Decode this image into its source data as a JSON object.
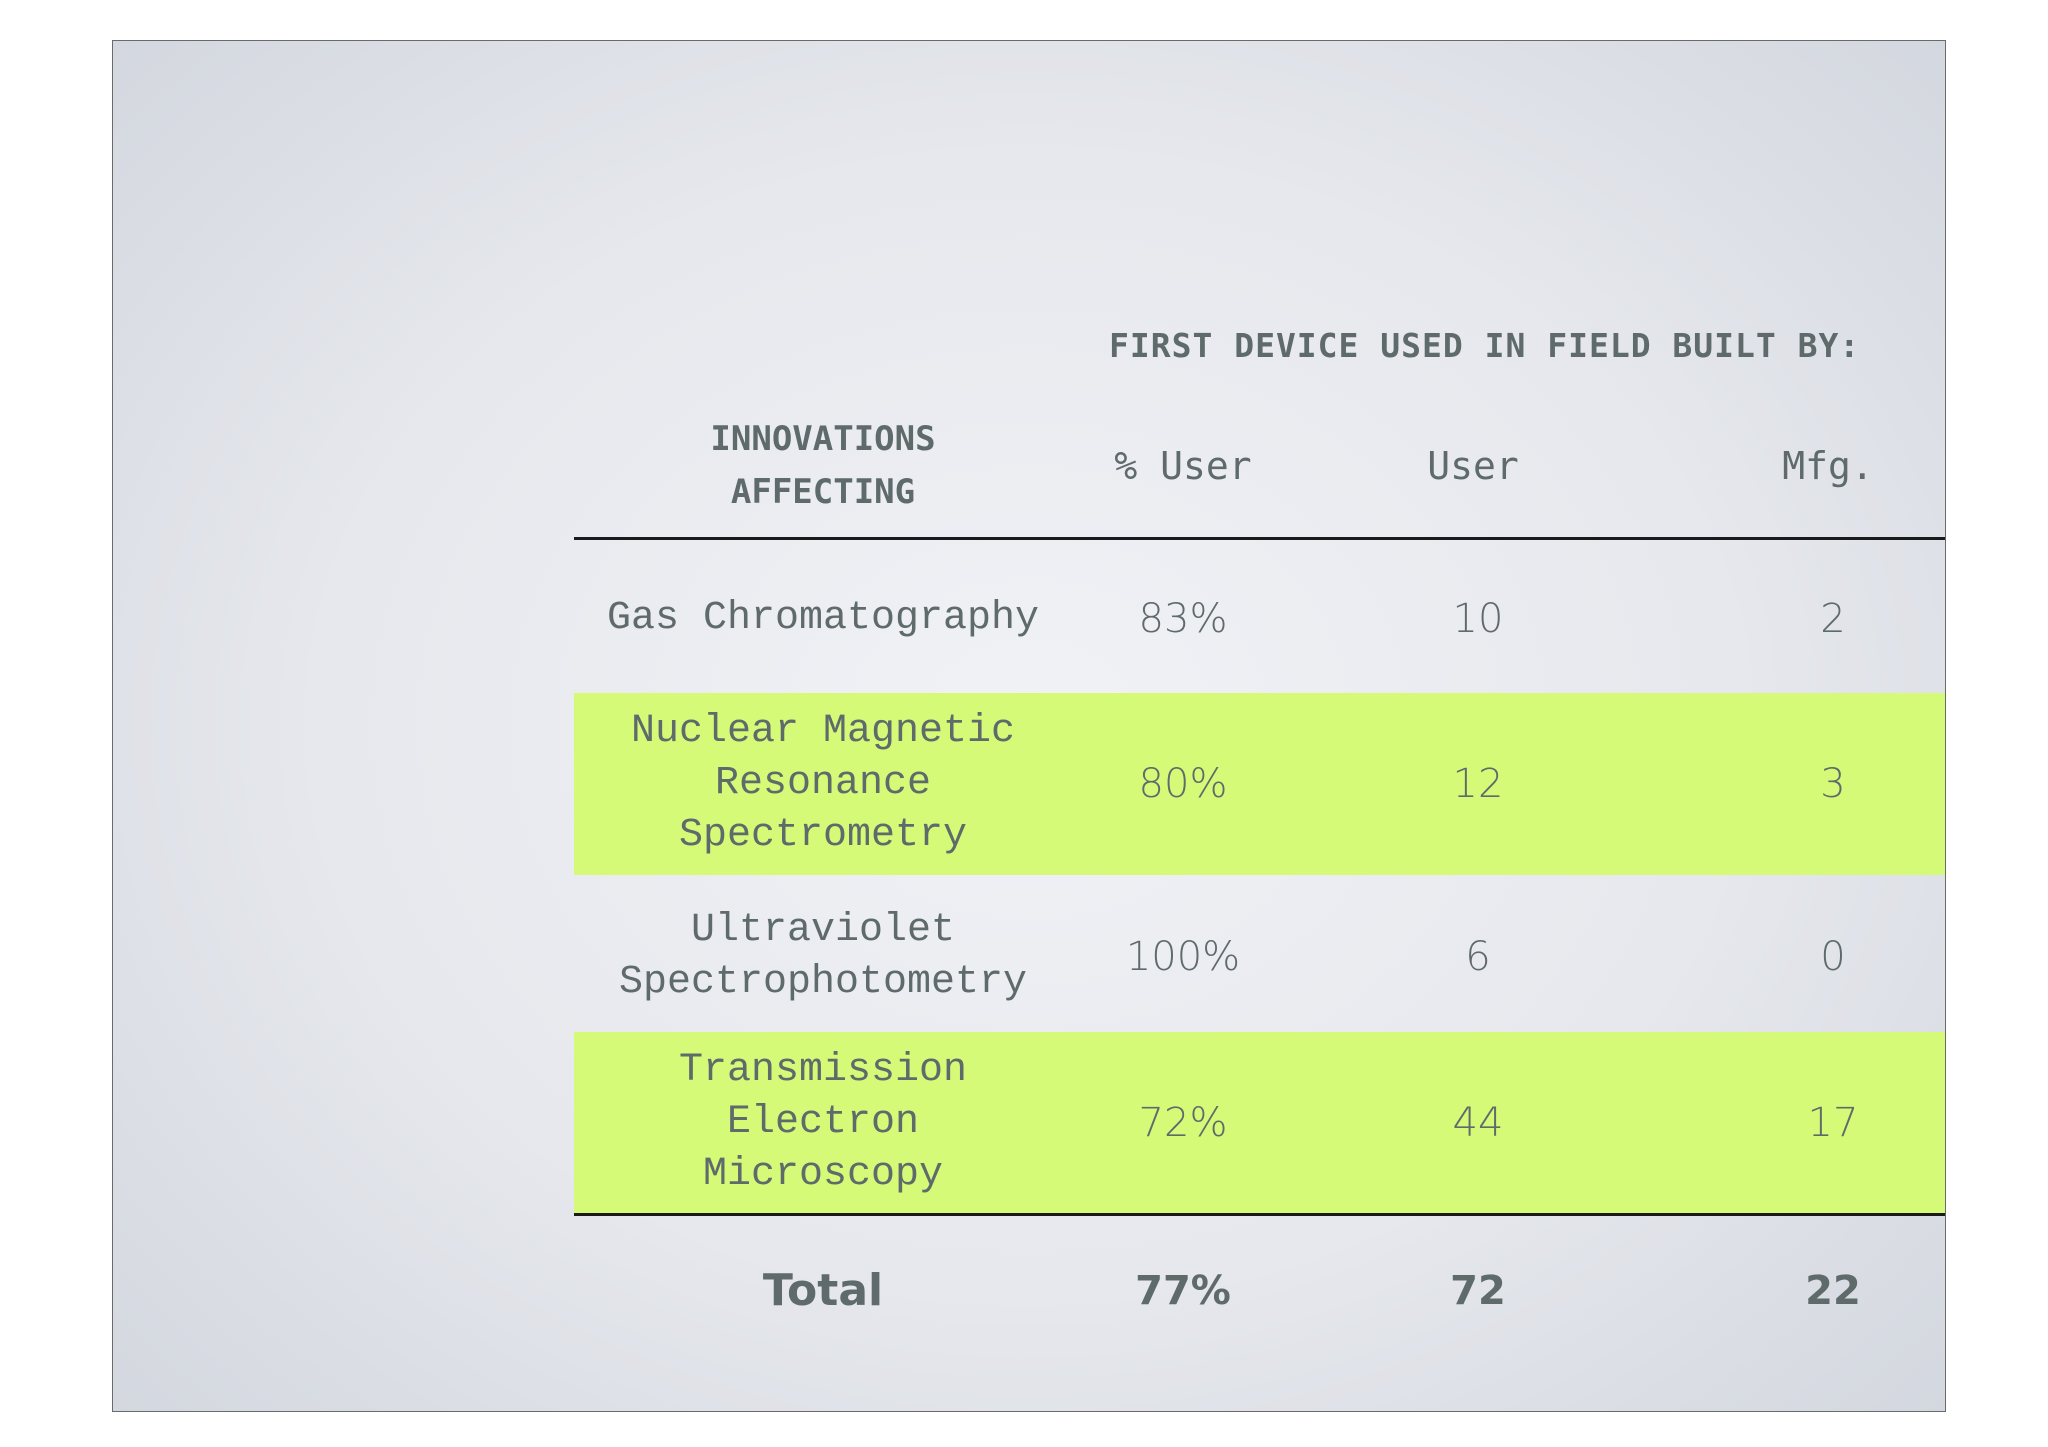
{
  "table": {
    "heading": "FIRST DEVICE USED IN FIELD BUILT BY:",
    "columns": {
      "innovations_line1": "INNOVATIONS",
      "innovations_line2": "AFFECTING",
      "pct_user": "% User",
      "user": "User",
      "mfg": "Mfg."
    },
    "rows": [
      {
        "name_lines": [
          "Gas Chromatography"
        ],
        "pct_user": "83%",
        "user": "10",
        "mfg": "2",
        "highlight": false
      },
      {
        "name_lines": [
          "Nuclear Magnetic",
          "Resonance",
          "Spectrometry"
        ],
        "pct_user": "80%",
        "user": "12",
        "mfg": "3",
        "highlight": true
      },
      {
        "name_lines": [
          "Ultraviolet",
          "Spectrophotometry"
        ],
        "pct_user": "100%",
        "user": "6",
        "mfg": "0",
        "highlight": false
      },
      {
        "name_lines": [
          "Transmission",
          "Electron",
          "Microscopy"
        ],
        "pct_user": "72%",
        "user": "44",
        "mfg": "17",
        "highlight": true
      }
    ],
    "total": {
      "label": "Total",
      "pct_user": "77%",
      "user": "72",
      "mfg": "22"
    },
    "colors": {
      "highlight": "#d5fa77",
      "text": "#5f6b6b",
      "rule": "#1a1a1a"
    }
  }
}
